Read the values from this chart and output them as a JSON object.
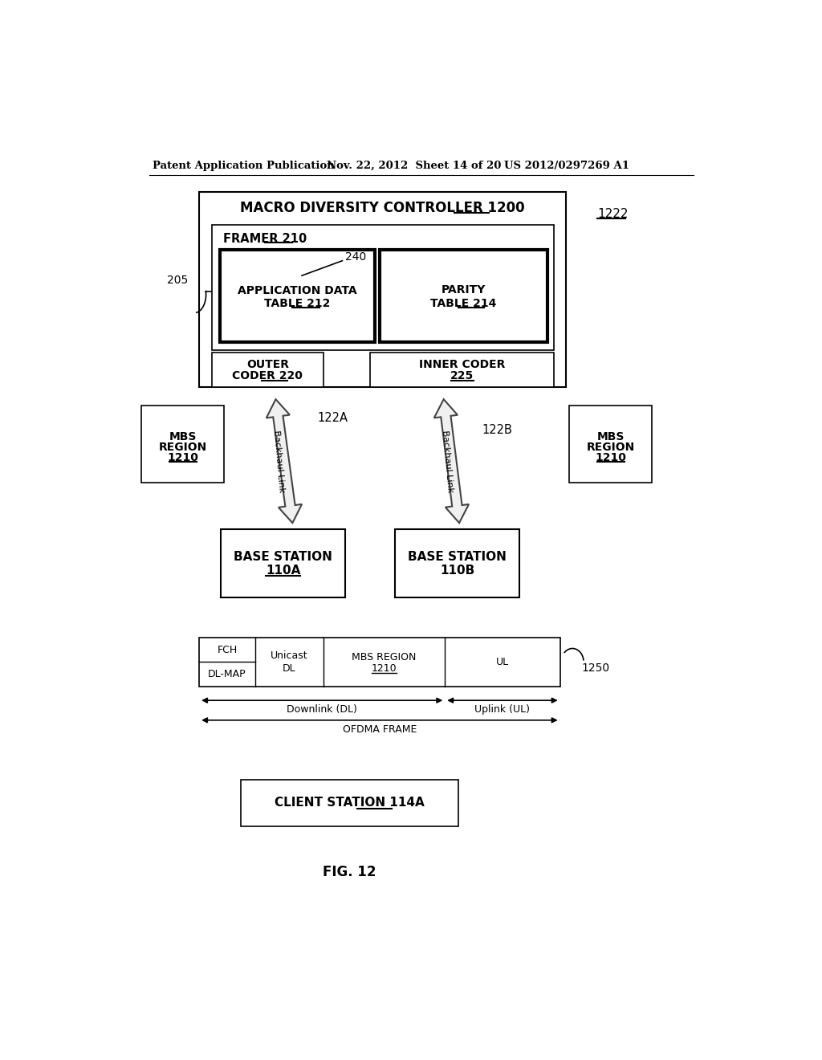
{
  "bg_color": "#ffffff",
  "header_left": "Patent Application Publication",
  "header_mid": "Nov. 22, 2012  Sheet 14 of 20",
  "header_right": "US 2012/0297269 A1",
  "fig_label": "FIG. 12",
  "label_1222": "1222",
  "label_205": "205",
  "label_240": "240",
  "mdc_title_plain": "MACRO DIVERSITY CONTROLLER ",
  "mdc_title_num": "1200",
  "framer_plain": "FRAMER ",
  "framer_num": "210",
  "app_data_label": "APPLICATION DATA\nTABLE ",
  "app_data_num": "212",
  "parity_plain": "PARITY\nTABLE ",
  "parity_num": "214",
  "outer_coder_plain": "OUTER\nCODER ",
  "outer_coder_num": "220",
  "inner_coder_plain": "INNER CODER\n",
  "inner_coder_num": "225",
  "mbs_region_plain": "MBS\nREGION\n",
  "mbs_region_num": "1210",
  "label_122A": "122A",
  "label_122B": "122B",
  "backhaul_link": "Backhaul Link",
  "base_station_A_plain": "BASE STATION\n",
  "base_station_A_num": "110A",
  "base_station_B_plain": "BASE STATION\n",
  "base_station_B_num": "110B",
  "downlink_label": "Downlink (DL)",
  "uplink_label": "Uplink (UL)",
  "ofdma_label": "OFDMA FRAME",
  "label_1250": "1250",
  "client_station_plain": "CLIENT STATION ",
  "client_station_num": "114A"
}
